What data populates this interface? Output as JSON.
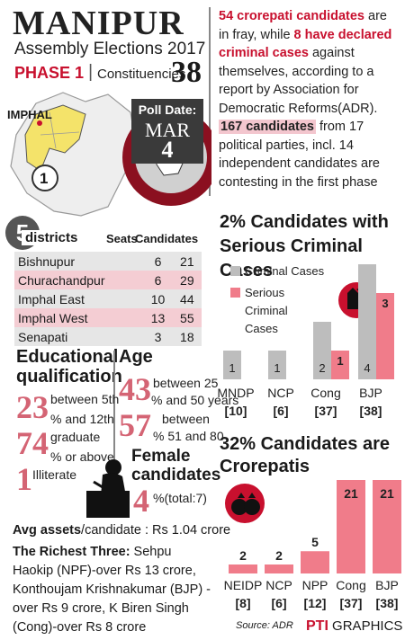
{
  "header": {
    "title": "MANIPUR",
    "subtitle": "Assembly Elections 2017",
    "phase": "PHASE 1",
    "separator": "|",
    "constituencies_label": "Constituencies",
    "constituencies_count": "38"
  },
  "intro": {
    "p1": "54 crorepati candidates",
    "p2": " are in fray, while ",
    "p3": "8 have declared criminal cases",
    "p4": " against themselves, according to a report by Association for Democratic Reforms(ADR). ",
    "p5": "167 candidates",
    "p6": " from 17 political parties, incl. 14 independent candidates are contesting in the first phase"
  },
  "poll": {
    "label": "Poll Date:",
    "month": "MAR",
    "day": "4"
  },
  "map": {
    "label": "IMPHAL",
    "marker": "1"
  },
  "districts": {
    "section_num": "5",
    "title": "districts",
    "seats_header": "Seats",
    "candidates_header": "Candidates",
    "rows": [
      {
        "name": "Bishnupur",
        "seats": "6",
        "candidates": "21"
      },
      {
        "name": "Churachandpur",
        "seats": "6",
        "candidates": "29"
      },
      {
        "name": "Imphal East",
        "seats": "10",
        "candidates": "44"
      },
      {
        "name": "Imphal West",
        "seats": "13",
        "candidates": "55"
      },
      {
        "name": "Senapati",
        "seats": "3",
        "candidates": "18"
      }
    ]
  },
  "education": {
    "title": "Educational qualification",
    "items": [
      {
        "pct": "23",
        "label_a": "between 5th",
        "label_b": "% and 12th"
      },
      {
        "pct": "74",
        "label_a": "graduate",
        "label_b": "% or above"
      },
      {
        "pct": "1",
        "label_a": "",
        "label_b": "Illiterate"
      }
    ]
  },
  "age": {
    "title": "Age",
    "items": [
      {
        "pct": "43",
        "label_a": "between 25",
        "label_b": "% and 50 years"
      },
      {
        "pct": "57",
        "label_a": "between",
        "label_b": "% 51 and 80"
      }
    ]
  },
  "female": {
    "title": "Female candidates",
    "pct": "4",
    "note": "%(total:7)"
  },
  "assets": {
    "avg_label": "Avg assets",
    "avg_rest": "/candidate : Rs 1.04 crore",
    "richest_label": "The Richest Three:",
    "richest_rest": " Sehpu Haokip (NPF)-over Rs 13 crore, Konthoujam Krishnakumar (BJP) -over Rs 9 crore, K Biren Singh (Cong)-over Rs 8 crore"
  },
  "footer": {
    "source": "Source: ADR",
    "brand_a": "PTI",
    "brand_b": " GRAPHICS"
  },
  "colors": {
    "red": "#c8102e",
    "pink": "#f07c8a",
    "grey": "#bdbdbd",
    "dark": "#3a3a3a"
  },
  "chart_data": [
    {
      "type": "bar",
      "title": "2% Candidates with Serious Criminal Cases",
      "categories": [
        "MNDP [10]",
        "NCP [6]",
        "Cong [37]",
        "BJP [38]"
      ],
      "category_names": [
        "MNDP",
        "NCP",
        "Cong",
        "BJP"
      ],
      "category_counts": [
        "[10]",
        "[6]",
        "[37]",
        "[38]"
      ],
      "series": [
        {
          "name": "Criminal Cases",
          "values": [
            1,
            1,
            2,
            4
          ]
        },
        {
          "name": "Serious Criminal Cases",
          "values": [
            0,
            0,
            1,
            3
          ]
        }
      ],
      "legend": [
        "Criminal Cases",
        "Serious Criminal Cases"
      ],
      "legend_position": "top-left",
      "ylim": [
        0,
        4
      ]
    },
    {
      "type": "bar",
      "title": "32% Candidates are Crorepatis",
      "categories": [
        "NEIDP [8]",
        "NCP [6]",
        "NPP [12]",
        "Cong [37]",
        "BJP [38]"
      ],
      "category_names": [
        "NEIDP",
        "NCP",
        "NPP",
        "Cong",
        "BJP"
      ],
      "category_counts": [
        "[8]",
        "[6]",
        "[12]",
        "[37]",
        "[38]"
      ],
      "values": [
        2,
        2,
        5,
        21,
        21
      ],
      "ylim": [
        0,
        21
      ]
    }
  ]
}
